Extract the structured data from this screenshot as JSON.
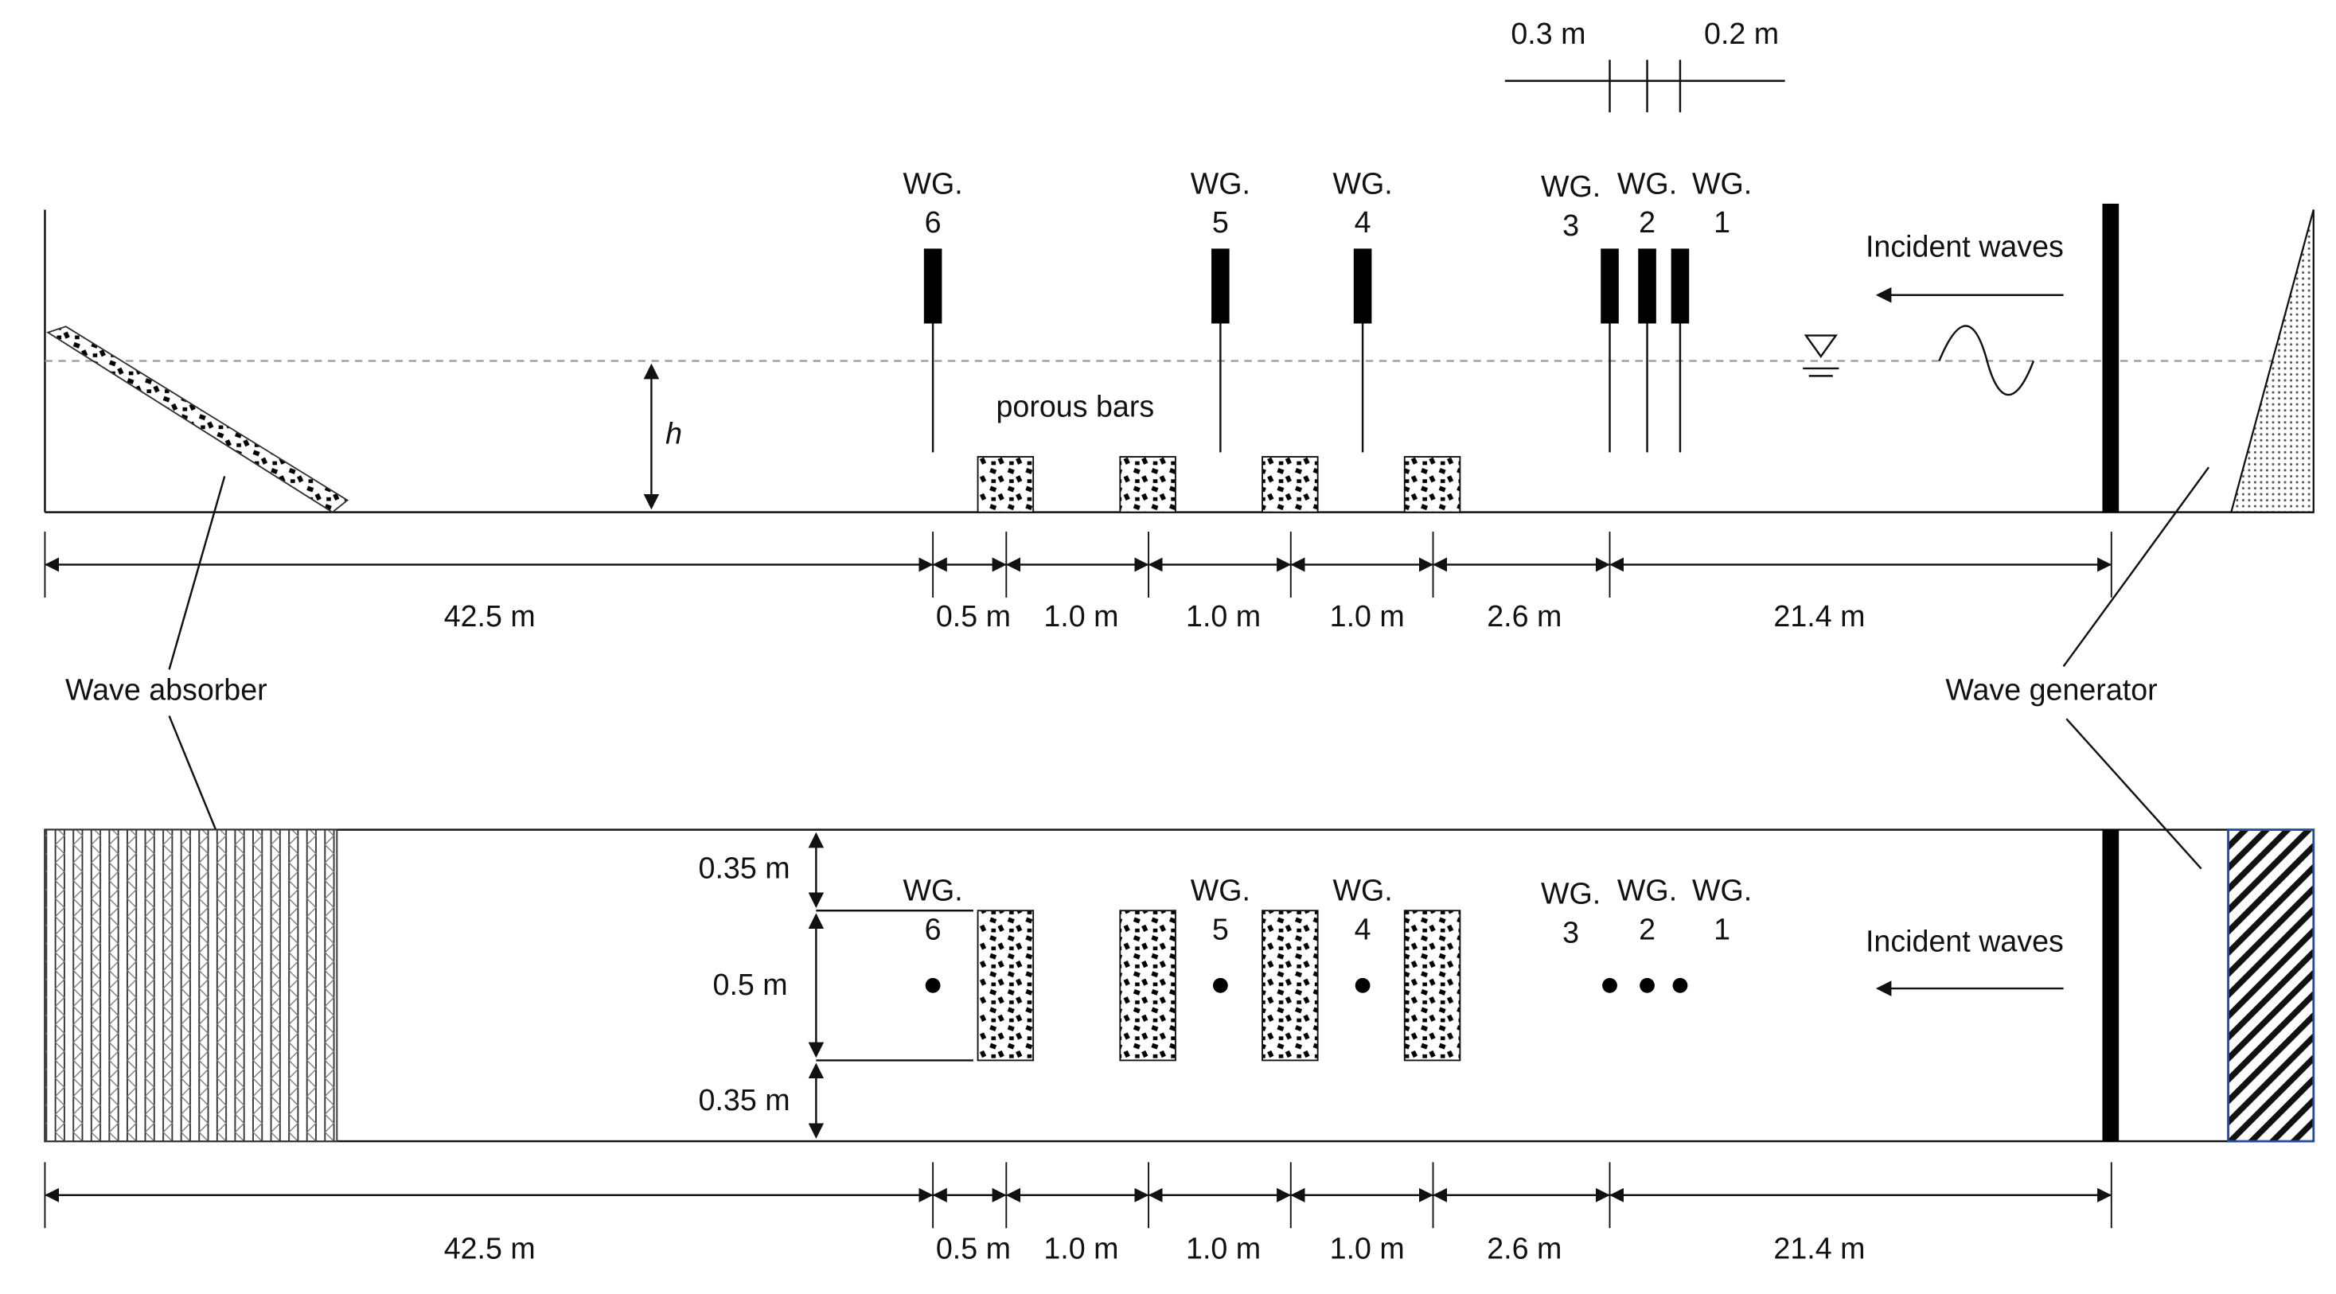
{
  "top_spacing": [
    "0.3 m",
    "0.2 m"
  ],
  "side_view": {
    "gauges": [
      {
        "label": "WG.",
        "number": "6"
      },
      {
        "label": "WG.",
        "number": "5"
      },
      {
        "label": "WG.",
        "number": "4"
      },
      {
        "label": "WG.",
        "number": "3"
      },
      {
        "label": "WG.",
        "number": "2"
      },
      {
        "label": "WG.",
        "number": "1"
      }
    ],
    "depth_label": "h",
    "porous_label": "porous bars",
    "incident_label": "Incident waves",
    "distances": [
      "42.5 m",
      "0.5 m",
      "1.0 m",
      "1.0 m",
      "1.0 m",
      "2.6 m",
      "21.4 m"
    ]
  },
  "callouts": {
    "absorber": "Wave absorber",
    "generator": "Wave generator"
  },
  "plan_view": {
    "gauges": [
      {
        "label": "WG.",
        "number": "6"
      },
      {
        "label": "WG.",
        "number": "5"
      },
      {
        "label": "WG.",
        "number": "4"
      },
      {
        "label": "WG.",
        "number": "3"
      },
      {
        "label": "WG.",
        "number": "2"
      },
      {
        "label": "WG.",
        "number": "1"
      }
    ],
    "widths": [
      "0.35 m",
      "0.5 m",
      "0.35 m"
    ],
    "incident_label": "Incident waves",
    "distances": [
      "42.5 m",
      "0.5 m",
      "1.0 m",
      "1.0 m",
      "1.0 m",
      "2.6 m",
      "21.4 m"
    ]
  }
}
